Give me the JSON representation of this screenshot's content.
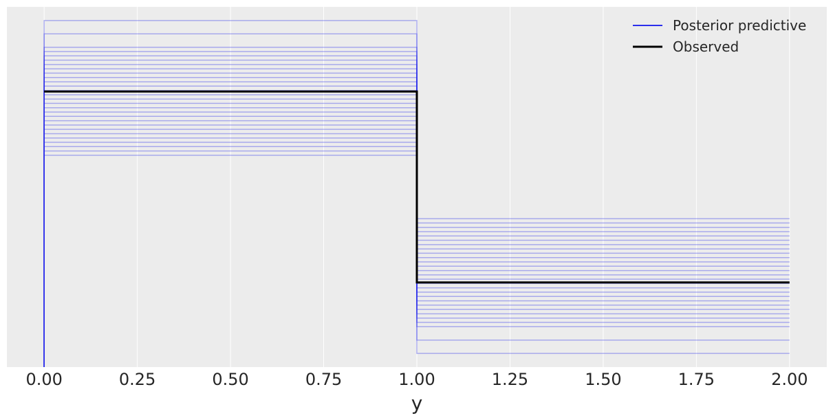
{
  "chart_data": {
    "type": "line",
    "title": "",
    "xlabel": "y",
    "ylabel": "",
    "xlim": [
      -0.1,
      2.1
    ],
    "ylim": [
      0.0,
      1.0
    ],
    "x_ticks": [
      0.0,
      0.25,
      0.5,
      0.75,
      1.0,
      1.25,
      1.5,
      1.75,
      2.0
    ],
    "x_tick_labels": [
      "0.00",
      "0.25",
      "0.50",
      "0.75",
      "1.00",
      "1.25",
      "1.50",
      "1.75",
      "2.00"
    ],
    "grid": true,
    "legend_position": "top-right",
    "legend": [
      {
        "label": "Posterior predictive",
        "color": "#2a2eec"
      },
      {
        "label": "Observed",
        "color": "#000000"
      }
    ],
    "observed": {
      "name": "Observed",
      "color": "#000000",
      "steps": [
        {
          "x0": 0.0,
          "x1": 1.0,
          "y": 0.765
        },
        {
          "x0": 1.0,
          "x1": 2.0,
          "y": 0.235
        }
      ]
    },
    "posterior_predictive": {
      "name": "Posterior predictive",
      "color": "#2a2eec",
      "step_x": [
        0.0,
        1.0,
        2.0
      ],
      "left_heights": [
        0.962,
        0.925,
        0.888,
        0.876,
        0.864,
        0.852,
        0.84,
        0.828,
        0.816,
        0.804,
        0.792,
        0.78,
        0.768,
        0.756,
        0.744,
        0.732,
        0.72,
        0.708,
        0.696,
        0.684,
        0.672,
        0.66,
        0.648,
        0.636,
        0.624,
        0.612,
        0.6,
        0.588
      ],
      "right_heights": [
        0.038,
        0.075,
        0.112,
        0.124,
        0.136,
        0.148,
        0.16,
        0.172,
        0.184,
        0.196,
        0.208,
        0.22,
        0.232,
        0.244,
        0.256,
        0.268,
        0.28,
        0.292,
        0.304,
        0.316,
        0.328,
        0.34,
        0.352,
        0.364,
        0.376,
        0.388,
        0.4,
        0.412
      ]
    }
  }
}
